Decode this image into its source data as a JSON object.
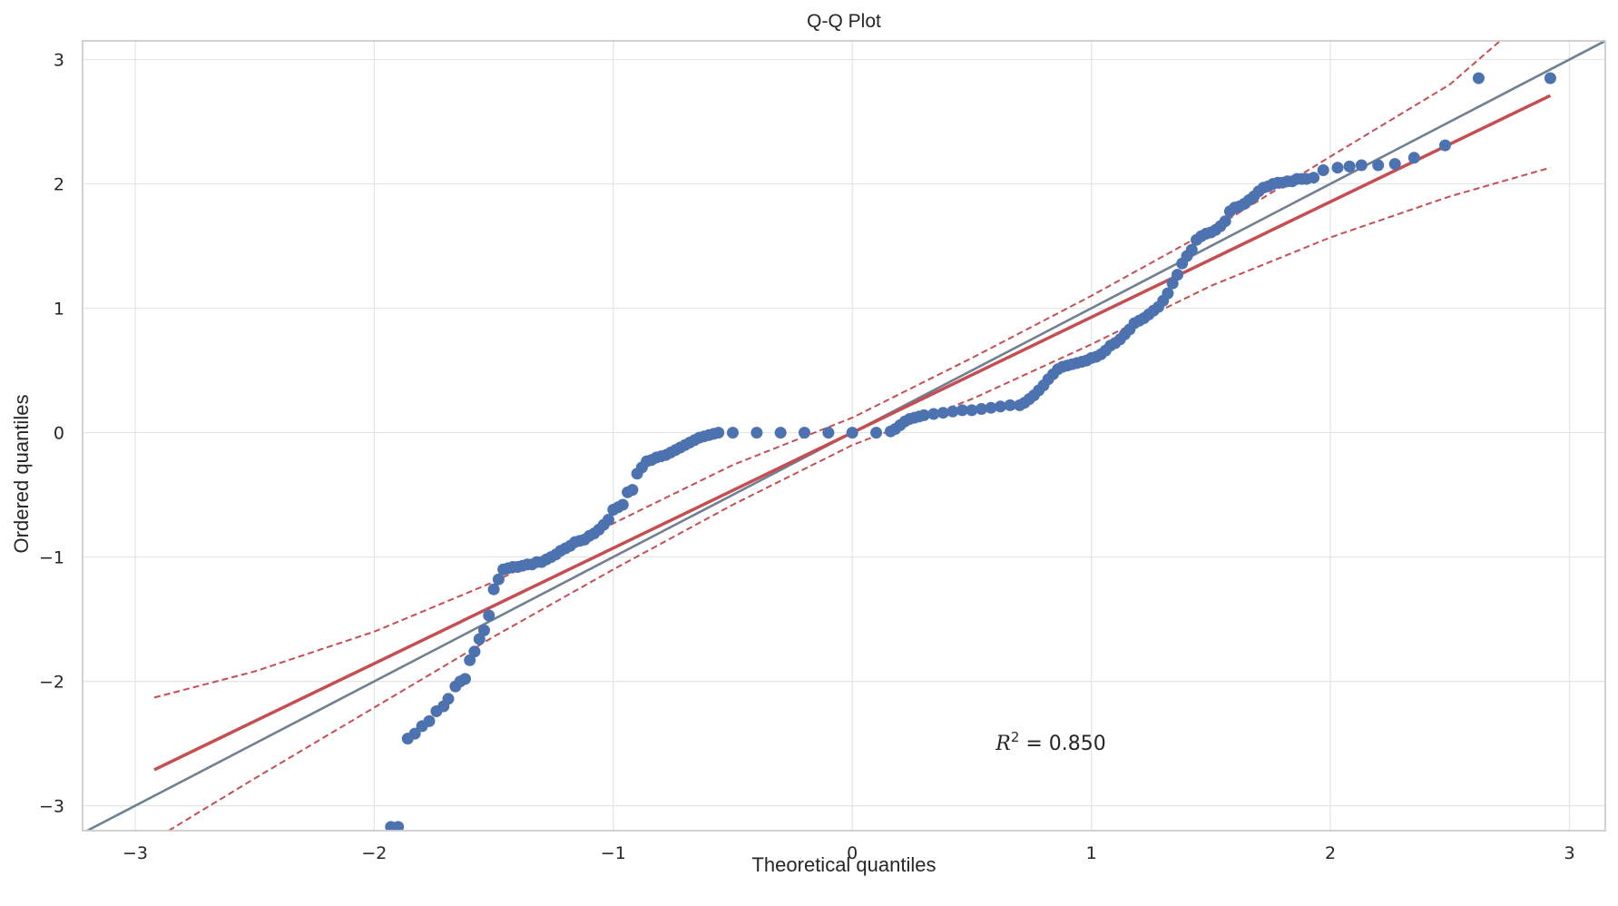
{
  "chart_data": {
    "type": "scatter",
    "title": "Q-Q Plot",
    "xlabel": "Theoretical quantiles",
    "ylabel": "Ordered quantiles",
    "xlim": [
      -3.22,
      3.15
    ],
    "ylim": [
      -3.2,
      3.15
    ],
    "xticks": [
      -3,
      -2,
      -1,
      0,
      1,
      2,
      3
    ],
    "yticks": [
      -3,
      -2,
      -1,
      0,
      1,
      2,
      3
    ],
    "tick_labels": {
      "x": [
        "−3",
        "−2",
        "−1",
        "0",
        "1",
        "2",
        "3"
      ],
      "y": [
        "−3",
        "−2",
        "−1",
        "0",
        "1",
        "2",
        "3"
      ]
    },
    "grid": true,
    "colors": {
      "points": "#4c72b0",
      "fit_line": "#c44e52",
      "reference_line": "#708090",
      "confidence_band": "#c44e52"
    },
    "series": [
      {
        "kind": "points",
        "x": [
          -1.93,
          -1.9,
          -1.86,
          -1.83,
          -1.8,
          -1.77,
          -1.74,
          -1.71,
          -1.69,
          -1.66,
          -1.64,
          -1.62,
          -1.6,
          -1.58,
          -1.56,
          -1.54,
          -1.52,
          -1.5,
          -1.48,
          -1.46,
          -1.44,
          -1.42,
          -1.4,
          -1.38,
          -1.36,
          -1.34,
          -1.32,
          -1.3,
          -1.28,
          -1.26,
          -1.24,
          -1.22,
          -1.2,
          -1.18,
          -1.16,
          -1.14,
          -1.12,
          -1.1,
          -1.08,
          -1.06,
          -1.04,
          -1.02,
          -1.0,
          -0.98,
          -0.96,
          -0.94,
          -0.92,
          -0.9,
          -0.88,
          -0.86,
          -0.84,
          -0.82,
          -0.8,
          -0.78,
          -0.76,
          -0.74,
          -0.72,
          -0.7,
          -0.68,
          -0.66,
          -0.64,
          -0.62,
          -0.6,
          -0.58,
          -0.56,
          -0.5,
          -0.4,
          -0.3,
          -0.2,
          -0.1,
          0.0,
          0.1,
          0.16,
          0.18,
          0.2,
          0.22,
          0.24,
          0.26,
          0.28,
          0.3,
          0.34,
          0.38,
          0.42,
          0.46,
          0.5,
          0.54,
          0.58,
          0.62,
          0.66,
          0.7,
          0.72,
          0.74,
          0.76,
          0.78,
          0.8,
          0.82,
          0.84,
          0.86,
          0.88,
          0.9,
          0.92,
          0.94,
          0.96,
          0.98,
          1.0,
          1.02,
          1.04,
          1.06,
          1.08,
          1.1,
          1.12,
          1.14,
          1.16,
          1.18,
          1.2,
          1.22,
          1.24,
          1.26,
          1.28,
          1.3,
          1.32,
          1.34,
          1.36,
          1.38,
          1.4,
          1.42,
          1.44,
          1.46,
          1.48,
          1.5,
          1.52,
          1.54,
          1.56,
          1.58,
          1.6,
          1.62,
          1.64,
          1.66,
          1.68,
          1.7,
          1.72,
          1.74,
          1.76,
          1.78,
          1.8,
          1.82,
          1.84,
          1.86,
          1.88,
          1.9,
          1.93,
          1.97,
          2.03,
          2.08,
          2.13,
          2.2,
          2.27,
          2.35,
          2.48,
          2.62,
          2.92
        ],
        "y": [
          -3.17,
          -3.17,
          -2.46,
          -2.42,
          -2.36,
          -2.32,
          -2.24,
          -2.2,
          -2.14,
          -2.04,
          -2.0,
          -1.98,
          -1.83,
          -1.76,
          -1.66,
          -1.59,
          -1.47,
          -1.26,
          -1.18,
          -1.1,
          -1.09,
          -1.08,
          -1.08,
          -1.07,
          -1.06,
          -1.06,
          -1.04,
          -1.04,
          -1.02,
          -1.0,
          -0.98,
          -0.95,
          -0.93,
          -0.91,
          -0.88,
          -0.87,
          -0.86,
          -0.83,
          -0.81,
          -0.78,
          -0.74,
          -0.7,
          -0.62,
          -0.6,
          -0.58,
          -0.48,
          -0.46,
          -0.33,
          -0.28,
          -0.23,
          -0.22,
          -0.2,
          -0.19,
          -0.18,
          -0.16,
          -0.14,
          -0.12,
          -0.1,
          -0.08,
          -0.06,
          -0.04,
          -0.03,
          -0.02,
          -0.01,
          0.0,
          0.0,
          0.0,
          0.0,
          0.0,
          0.0,
          0.0,
          0.0,
          0.01,
          0.03,
          0.06,
          0.09,
          0.11,
          0.12,
          0.13,
          0.14,
          0.15,
          0.16,
          0.17,
          0.18,
          0.18,
          0.19,
          0.2,
          0.21,
          0.22,
          0.22,
          0.24,
          0.27,
          0.3,
          0.34,
          0.38,
          0.43,
          0.47,
          0.51,
          0.53,
          0.54,
          0.55,
          0.56,
          0.57,
          0.58,
          0.6,
          0.61,
          0.63,
          0.66,
          0.7,
          0.72,
          0.75,
          0.79,
          0.83,
          0.88,
          0.9,
          0.92,
          0.95,
          0.98,
          1.01,
          1.06,
          1.12,
          1.2,
          1.27,
          1.36,
          1.42,
          1.47,
          1.55,
          1.58,
          1.6,
          1.61,
          1.63,
          1.66,
          1.7,
          1.78,
          1.81,
          1.82,
          1.84,
          1.87,
          1.9,
          1.94,
          1.97,
          1.98,
          2.0,
          2.01,
          2.01,
          2.02,
          2.02,
          2.04,
          2.04,
          2.04,
          2.05,
          2.11,
          2.13,
          2.14,
          2.15,
          2.15,
          2.16,
          2.21,
          2.31,
          2.85,
          2.85
        ]
      },
      {
        "kind": "fit_line",
        "x": [
          -2.92,
          2.92
        ],
        "y": [
          -2.71,
          2.71
        ]
      },
      {
        "kind": "reference_line",
        "x": [
          -3.22,
          3.15
        ],
        "y": [
          -3.22,
          3.15
        ]
      },
      {
        "kind": "confidence_band_upper",
        "x": [
          -2.92,
          -2.5,
          -2.0,
          -1.5,
          -1.0,
          -0.5,
          0.0,
          0.5,
          1.0,
          1.5,
          2.0,
          2.5,
          2.71
        ],
        "y": [
          -2.13,
          -1.92,
          -1.6,
          -1.2,
          -0.73,
          -0.26,
          0.12,
          0.6,
          1.1,
          1.63,
          2.22,
          2.8,
          3.15
        ]
      },
      {
        "kind": "confidence_band_lower",
        "x": [
          -2.86,
          -2.5,
          -2.0,
          -1.5,
          -1.0,
          -0.5,
          0.0,
          0.5,
          1.0,
          1.5,
          2.0,
          2.5,
          2.92
        ],
        "y": [
          -3.2,
          -2.78,
          -2.21,
          -1.64,
          -1.1,
          -0.58,
          -0.1,
          0.27,
          0.71,
          1.18,
          1.57,
          1.9,
          2.13
        ]
      }
    ],
    "annotations": [
      {
        "text_italic": "R",
        "superscript": "2",
        "text": " = 0.850",
        "x": 0.6,
        "y": -2.55
      }
    ]
  }
}
